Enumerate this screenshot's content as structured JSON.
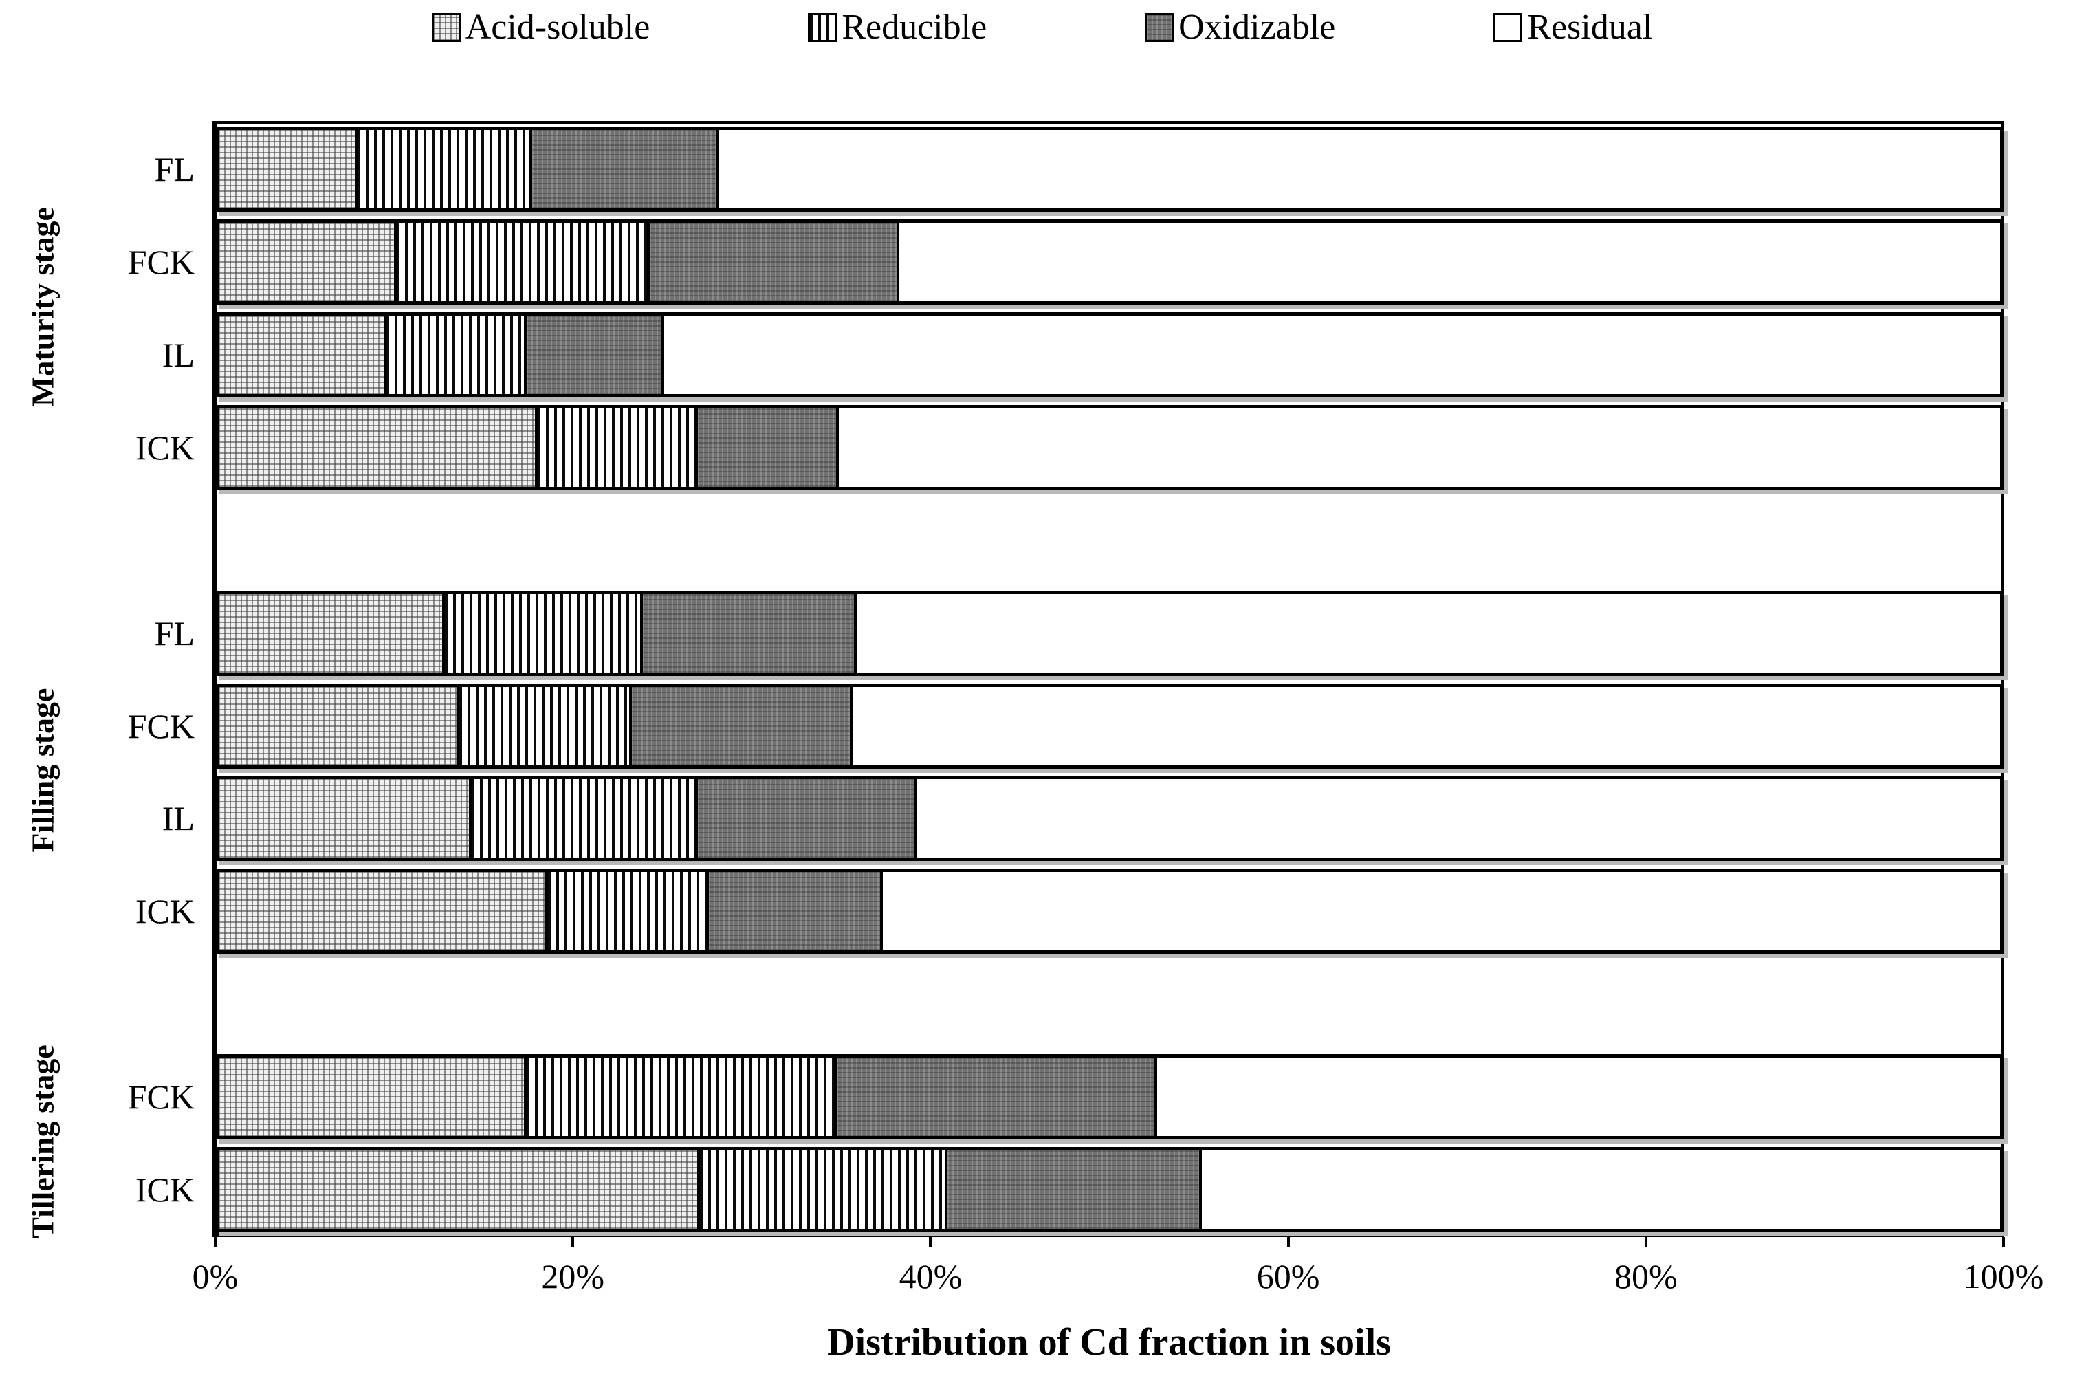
{
  "x_axis": {
    "tick_labels": [
      "0%",
      "20%",
      "40%",
      "60%",
      "80%",
      "100%"
    ],
    "title": "Distribution of Cd fraction in soils"
  },
  "chart_data": {
    "type": "bar",
    "stacked": true,
    "orientation": "horizontal",
    "unit": "percent",
    "xlim": [
      0,
      100
    ],
    "grid": false,
    "legend_position": "top",
    "series_names": [
      "Acid-soluble",
      "Reducible",
      "Oxidizable",
      "Residual"
    ],
    "series_patterns": [
      "light-dot-grid",
      "vertical-stripes",
      "dark-dot-texture",
      "white"
    ],
    "groups": [
      {
        "label": "Maturity stage",
        "bars": [
          {
            "label": "FL",
            "values": [
              7.8,
              9.8,
              10.5,
              71.9
            ]
          },
          {
            "label": "FCK",
            "values": [
              10.0,
              14.2,
              14.0,
              61.8
            ]
          },
          {
            "label": "IL",
            "values": [
              9.4,
              7.9,
              7.7,
              75.0
            ]
          },
          {
            "label": "ICK",
            "values": [
              17.9,
              9.0,
              7.9,
              65.2
            ]
          }
        ]
      },
      {
        "label": "Filling stage",
        "bars": [
          {
            "label": "FL",
            "values": [
              12.7,
              11.1,
              12.0,
              64.2
            ]
          },
          {
            "label": "FCK",
            "values": [
              13.5,
              9.7,
              12.4,
              64.4
            ]
          },
          {
            "label": "IL",
            "values": [
              14.2,
              12.7,
              12.3,
              60.8
            ]
          },
          {
            "label": "ICK",
            "values": [
              18.5,
              9.0,
              9.8,
              62.7
            ]
          }
        ]
      },
      {
        "label": "Tillering stage",
        "bars": [
          {
            "label": "FCK",
            "values": [
              17.3,
              17.4,
              18.0,
              47.3
            ]
          },
          {
            "label": "ICK",
            "values": [
              27.0,
              13.9,
              14.3,
              44.8
            ]
          }
        ]
      }
    ]
  }
}
